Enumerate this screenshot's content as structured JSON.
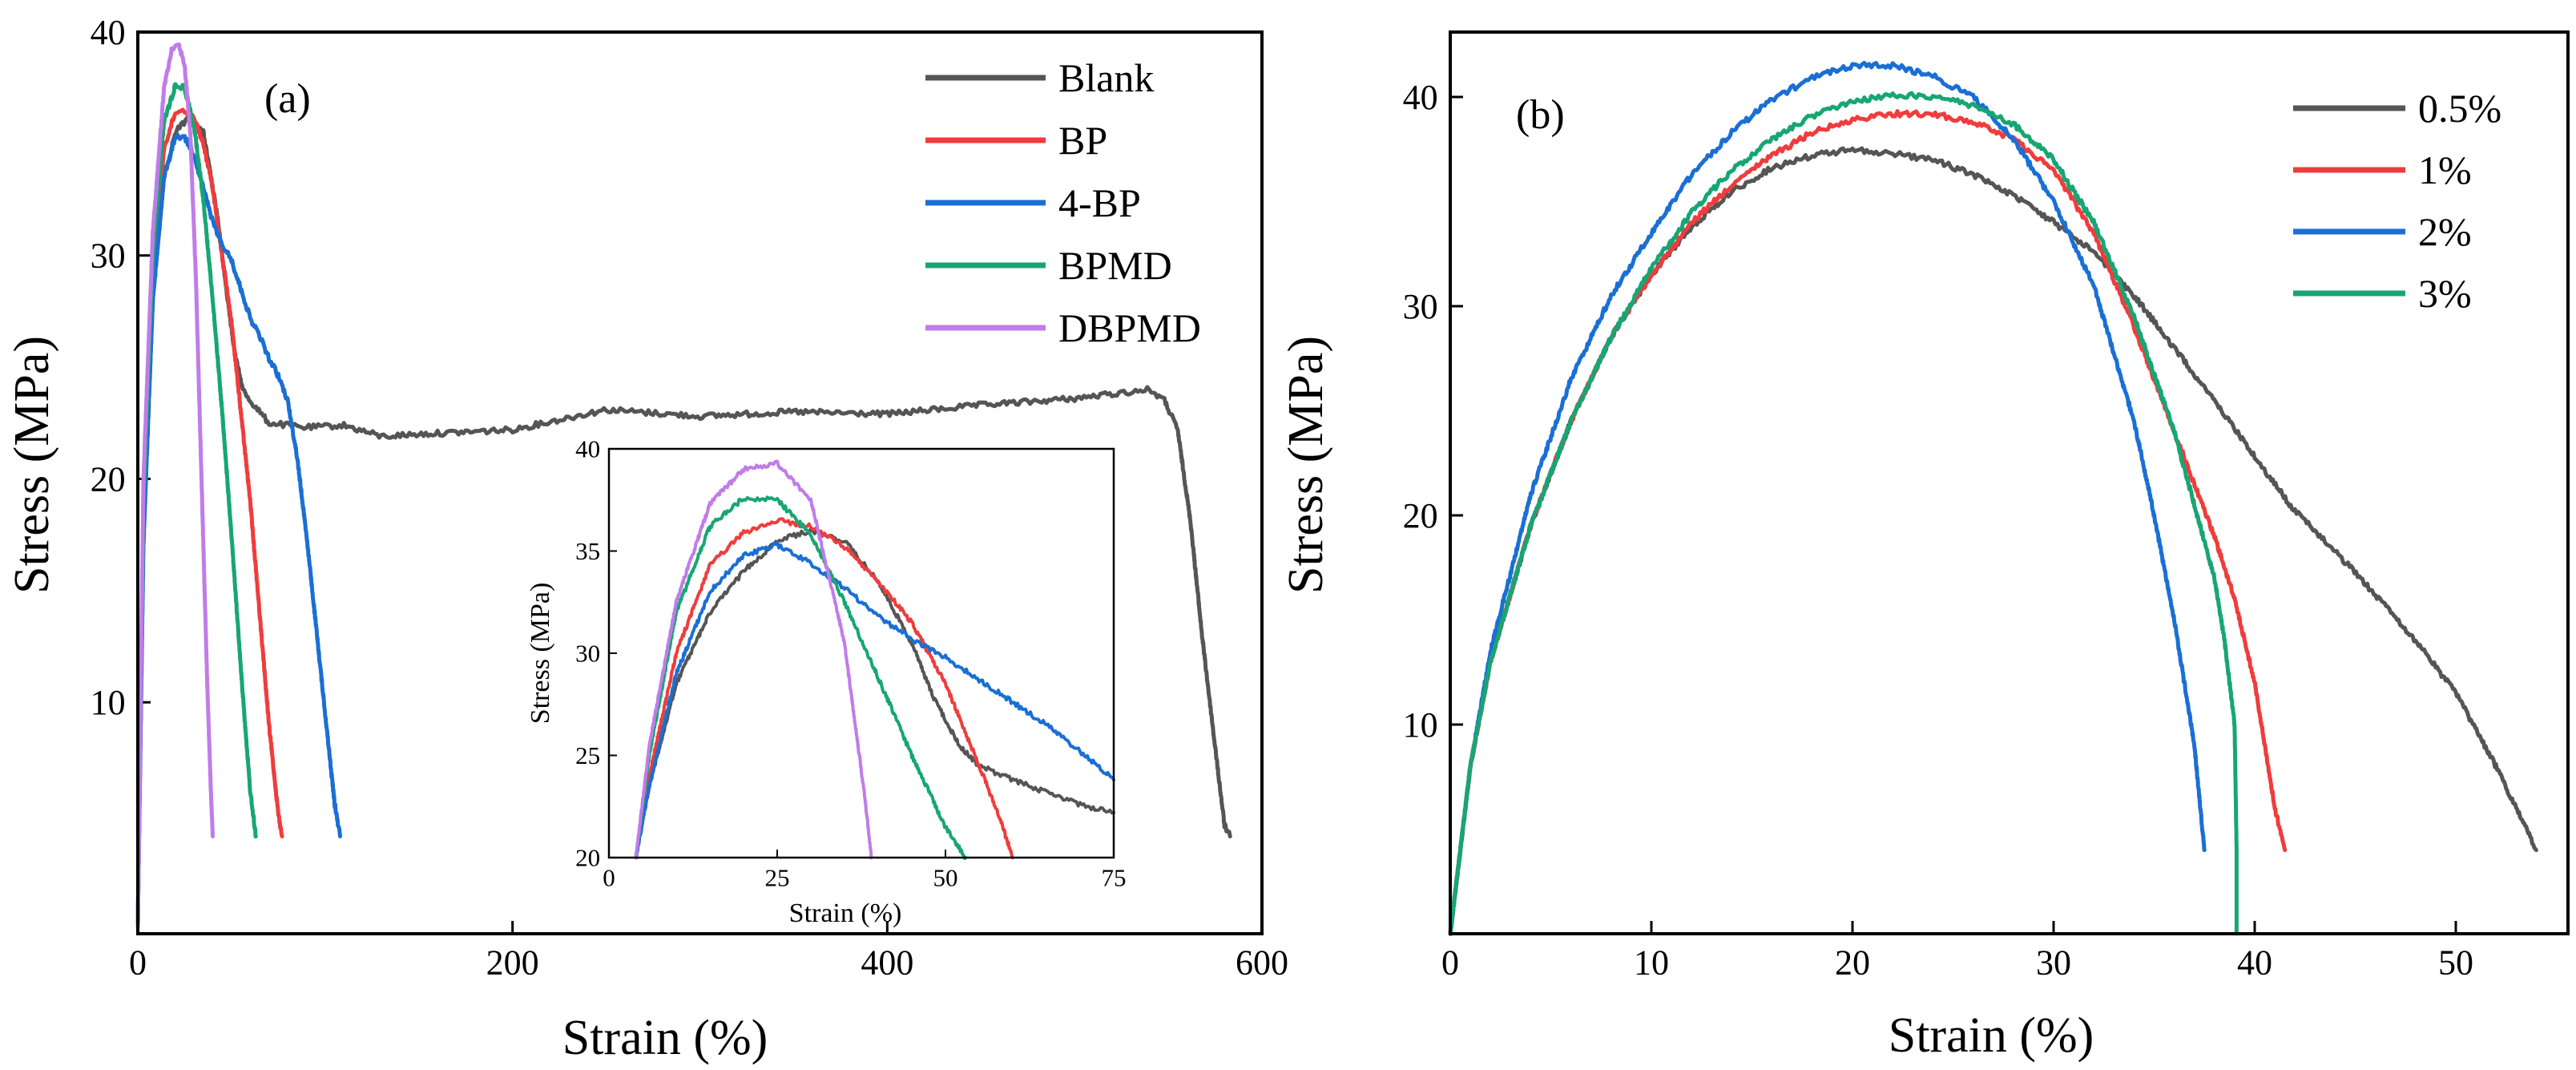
{
  "chart_data": [
    {
      "panel": "(a)",
      "type": "line",
      "xlabel": "Strain (%)",
      "ylabel": "Stress (MPa)",
      "xlim": [
        0,
        600
      ],
      "ylim": [
        0,
        40
      ],
      "xticks": [
        0,
        200,
        400,
        600
      ],
      "yticks": [
        10,
        20,
        30,
        40
      ],
      "grid": false,
      "legend_position": "top-right",
      "series": [
        {
          "name": "Blank",
          "color": "#555555",
          "x": [
            0,
            3,
            8,
            14,
            20,
            27,
            35,
            42,
            48,
            52,
            56,
            60,
            70,
            90,
            110,
            130,
            150,
            200,
            250,
            300,
            350,
            400,
            450,
            500,
            540,
            548,
            555,
            562,
            568,
            575,
            580,
            583
          ],
          "y": [
            0,
            18,
            28,
            33.5,
            35.5,
            36.2,
            35.5,
            32,
            28,
            25.5,
            24,
            23.5,
            22.5,
            22.3,
            22.4,
            21.9,
            22.0,
            22.2,
            23.1,
            22.8,
            23.0,
            22.9,
            23.3,
            23.6,
            24.0,
            23.5,
            22.2,
            18,
            13,
            8,
            4.5,
            4
          ]
        },
        {
          "name": "BP",
          "color": "#f03c3c",
          "x": [
            0,
            3,
            8,
            14,
            20,
            25,
            30,
            35,
            40,
            45,
            50,
            55,
            60,
            65,
            70,
            75,
            77
          ],
          "y": [
            0,
            18,
            29,
            34.8,
            36.4,
            36.5,
            36.2,
            35,
            33,
            30,
            27,
            23,
            19,
            14,
            9,
            5,
            4
          ]
        },
        {
          "name": "4-BP",
          "color": "#1a6fd4",
          "x": [
            0,
            3,
            8,
            14,
            20,
            25,
            30,
            35,
            40,
            45,
            50,
            55,
            60,
            65,
            70,
            75,
            80,
            85,
            90,
            95,
            100,
            105,
            108
          ],
          "y": [
            0,
            17,
            28,
            33.5,
            35.3,
            35.3,
            34.5,
            33,
            31.5,
            30.5,
            29.8,
            28.5,
            27.2,
            26.4,
            25.4,
            24.6,
            23.5,
            21,
            17.5,
            13.5,
            9.5,
            5.5,
            4
          ]
        },
        {
          "name": "BPMD",
          "color": "#17a673",
          "x": [
            0,
            3,
            8,
            14,
            20,
            25,
            30,
            35,
            40,
            45,
            50,
            55,
            60,
            63
          ],
          "y": [
            0,
            19,
            30,
            36,
            37.6,
            37.5,
            35.8,
            32.5,
            28,
            23,
            17.5,
            11.5,
            6,
            4
          ]
        },
        {
          "name": "DBPMD",
          "color": "#c07ce8",
          "x": [
            0,
            3,
            8,
            14,
            18,
            22,
            25,
            28,
            31,
            34,
            37,
            39,
            40
          ],
          "y": [
            0,
            20,
            31,
            37.5,
            39.2,
            39.4,
            38.5,
            35.5,
            29,
            20,
            11,
            6,
            4
          ]
        }
      ],
      "inset": {
        "xlabel": "Strain (%)",
        "ylabel": "Stress (MPa)",
        "xlim": [
          0,
          75
        ],
        "ylim": [
          20,
          40
        ],
        "xticks": [
          0,
          25,
          50,
          75
        ],
        "yticks": [
          20,
          25,
          30,
          35,
          40
        ],
        "series": [
          {
            "name": "Blank",
            "x": [
              4,
              6,
              10,
              15,
              20,
              25,
              30,
              35,
              40,
              45,
              48,
              52,
              55,
              60,
              65,
              70,
              75
            ],
            "y": [
              20,
              23.5,
              28.5,
              32,
              34,
              35.5,
              36,
              35.5,
              33.5,
              30.5,
              28,
              25.5,
              24.5,
              23.8,
              23.2,
              22.6,
              22.2
            ]
          },
          {
            "name": "BP",
            "x": [
              4,
              6,
              10,
              15,
              20,
              25,
              30,
              35,
              40,
              45,
              50,
              55,
              58,
              60
            ],
            "y": [
              20,
              24,
              30,
              34.3,
              35.9,
              36.5,
              36.2,
              35.2,
              33.5,
              31.5,
              28.5,
              24.5,
              22,
              20
            ]
          },
          {
            "name": "4-BP",
            "x": [
              4,
              6,
              10,
              15,
              20,
              25,
              30,
              35,
              40,
              45,
              50,
              55,
              60,
              65,
              70,
              75
            ],
            "y": [
              20,
              23.5,
              29,
              33,
              34.8,
              35.3,
              34.4,
              33.2,
              31.8,
              30.7,
              29.8,
              28.7,
              27.6,
              26.5,
              25.2,
              23.8
            ]
          },
          {
            "name": "BPMD",
            "x": [
              4,
              6,
              10,
              15,
              20,
              25,
              30,
              35,
              40,
              45,
              50,
              53
            ],
            "y": [
              20,
              25,
              32,
              36.2,
              37.6,
              37.5,
              35.8,
              32.5,
              28.8,
              25,
              21.5,
              20
            ]
          },
          {
            "name": "DBPMD",
            "x": [
              4,
              6,
              10,
              15,
              20,
              25,
              30,
              35,
              38,
              39
            ],
            "y": [
              20,
              25.5,
              32.5,
              37.3,
              39,
              39.3,
              37.5,
              30.5,
              23,
              20
            ]
          }
        ]
      }
    },
    {
      "panel": "(b)",
      "type": "line",
      "xlabel": "Strain (%)",
      "ylabel": "Stress (MPa)",
      "xlim": [
        0,
        55
      ],
      "ylim": [
        0,
        43
      ],
      "xticks": [
        0,
        10,
        20,
        30,
        40,
        50
      ],
      "yticks": [
        10,
        20,
        30,
        40
      ],
      "grid": false,
      "legend_position": "top-right",
      "series": [
        {
          "name": "0.5%",
          "color": "#555555",
          "x": [
            0,
            1,
            2,
            4,
            6,
            8,
            10,
            12,
            14,
            16,
            18,
            20,
            22,
            24,
            26,
            28,
            30,
            32,
            34,
            36,
            38,
            40,
            42,
            44,
            46,
            48,
            50,
            52,
            53,
            54
          ],
          "y": [
            0,
            8,
            13,
            19.5,
            24.5,
            28.5,
            31.5,
            33.8,
            35.5,
            36.6,
            37.2,
            37.5,
            37.3,
            37,
            36.3,
            35.3,
            34,
            32.6,
            30.5,
            28,
            25.5,
            22.8,
            20.2,
            18.3,
            16.2,
            14,
            11.5,
            8,
            6,
            4
          ]
        },
        {
          "name": "1%",
          "color": "#f03c3c",
          "x": [
            0,
            1,
            2,
            4,
            6,
            8,
            10,
            12,
            14,
            16,
            18,
            20,
            22,
            24,
            26,
            28,
            30,
            32,
            34,
            36,
            38,
            39,
            40,
            41,
            41.5
          ],
          "y": [
            0,
            8,
            13,
            19.5,
            24.5,
            28.5,
            31.5,
            34,
            35.8,
            37.2,
            38.3,
            38.9,
            39.2,
            39.2,
            38.8,
            38,
            36.5,
            33.5,
            29,
            24,
            19,
            16,
            12,
            6,
            4
          ]
        },
        {
          "name": "2%",
          "color": "#1a6fd4",
          "x": [
            0,
            1,
            2,
            4,
            6,
            8,
            10,
            12,
            14,
            16,
            18,
            20,
            22,
            24,
            26,
            28,
            30,
            32,
            34,
            35,
            36,
            37,
            37.5
          ],
          "y": [
            0,
            8,
            13.5,
            21,
            26.5,
            30.5,
            33.5,
            36.3,
            38.3,
            39.9,
            40.9,
            41.5,
            41.5,
            41,
            40,
            38,
            35,
            31,
            24.5,
            20,
            15,
            9,
            4
          ]
        },
        {
          "name": "3%",
          "color": "#17a673",
          "x": [
            0,
            1,
            2,
            4,
            6,
            8,
            10,
            12,
            14,
            16,
            18,
            20,
            22,
            24,
            26,
            28,
            30,
            32,
            34,
            36,
            37,
            38,
            38.5,
            39,
            39.1,
            39.1
          ],
          "y": [
            0,
            8,
            13,
            19.5,
            24.5,
            28.5,
            31.8,
            34.5,
            36.5,
            38,
            39.1,
            39.8,
            40.1,
            40,
            39.6,
            38.7,
            37,
            34,
            29.5,
            24,
            20.5,
            17,
            14,
            10,
            4,
            0
          ]
        }
      ]
    }
  ]
}
